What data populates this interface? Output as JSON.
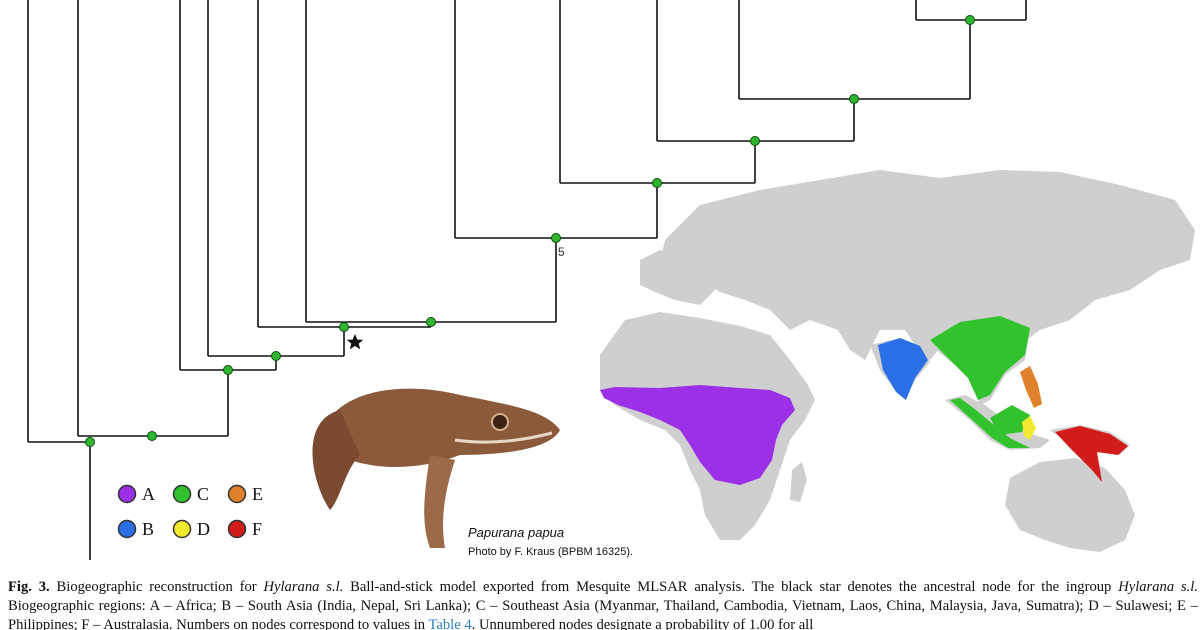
{
  "legend": {
    "items": [
      {
        "key": "A",
        "color": "#9b30e6"
      },
      {
        "key": "C",
        "color": "#32c22e"
      },
      {
        "key": "E",
        "color": "#e0822c"
      },
      {
        "key": "B",
        "color": "#2b6fe6"
      },
      {
        "key": "D",
        "color": "#f3e92f"
      },
      {
        "key": "F",
        "color": "#d21b1b"
      }
    ]
  },
  "tree": {
    "node_label": "5",
    "node_color": "#2fb52f"
  },
  "photo": {
    "species": "Papurana papua",
    "credit": "Photo by F. Kraus (BPBM 16325)."
  },
  "map": {
    "land_color": "#cfcfcf"
  },
  "caption": {
    "label": "Fig. 3.",
    "text_1": "Biogeographic reconstruction for",
    "taxon_1": "Hylarana s.l.",
    "text_2": "Ball-and-stick model exported from Mesquite MLSAR analysis. The black star denotes the ancestral node for the ingroup",
    "taxon_2": "Hylarana s.l.",
    "text_3": "Biogeographic regions: A – Africa; B – South Asia (India, Nepal, Sri Lanka); C – Southeast Asia (Myanmar, Thailand, Cambodia, Vietnam, Laos, China, Malaysia, Java, Sumatra); D – Sulawesi; E – Philippines; F – Australasia. Numbers on nodes correspond to values in",
    "ref": "Table 4",
    "text_4": ". Unnumbered nodes designate a probability of 1.00 for all"
  }
}
